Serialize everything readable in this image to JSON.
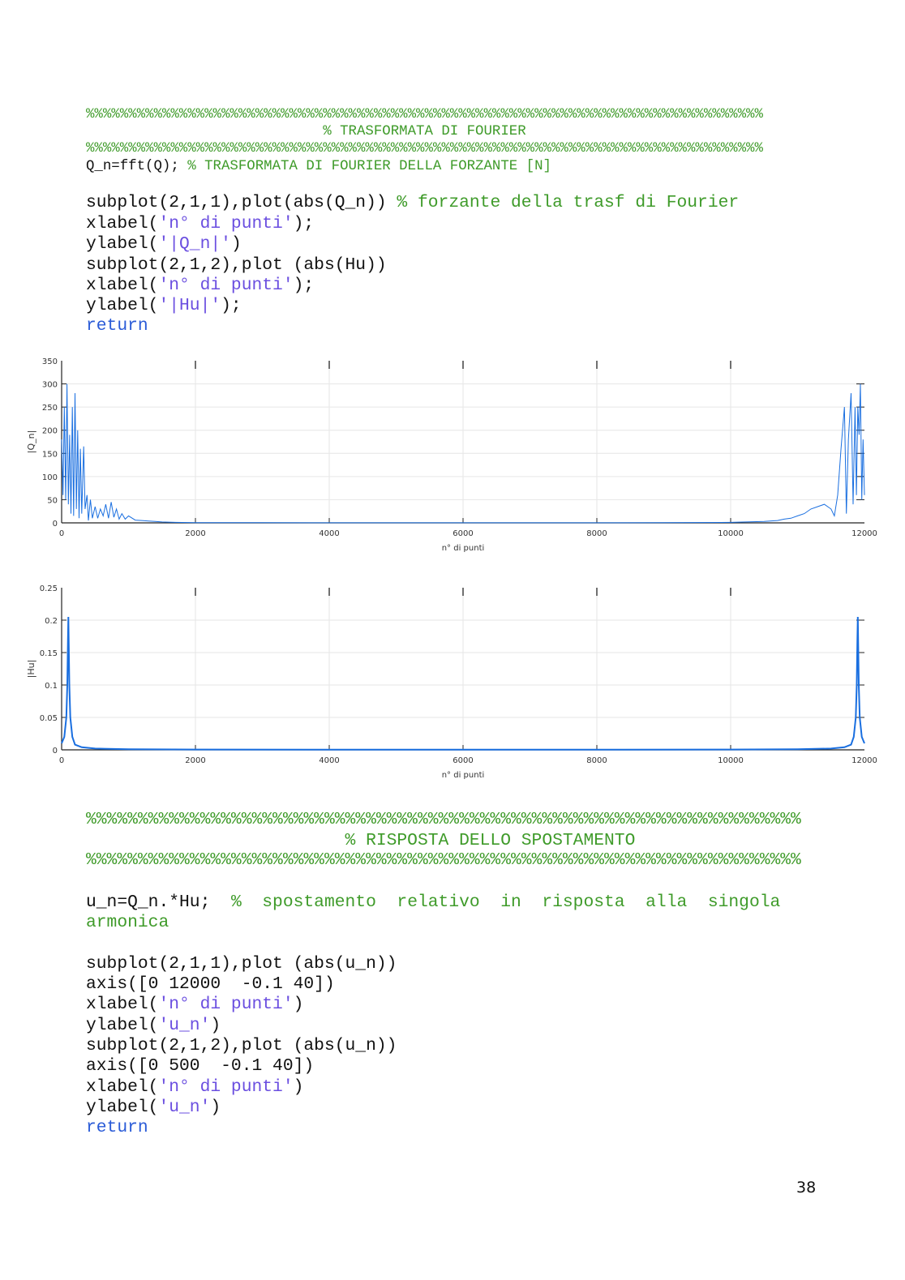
{
  "code_top": [
    {
      "size": "sm",
      "segments": [
        {
          "t": "%%%%%%%%%%%%%%%%%%%%%%%%%%%%%%%%%%%%%%%%%%%%%%%%%%%%%%%%%%%%%%%%%%%%%%%%%%%%%%%%",
          "c": "c"
        }
      ]
    },
    {
      "size": "sm",
      "segments": [
        {
          "t": "                            % TRASFORMATA DI FOURIER",
          "c": "c"
        }
      ]
    },
    {
      "size": "sm",
      "segments": [
        {
          "t": "%%%%%%%%%%%%%%%%%%%%%%%%%%%%%%%%%%%%%%%%%%%%%%%%%%%%%%%%%%%%%%%%%%%%%%%%%%%%%%%%",
          "c": "c"
        }
      ]
    },
    {
      "size": "sm",
      "segments": [
        {
          "t": "Q_n=fft(Q); ",
          "c": ""
        },
        {
          "t": "% TRASFORMATA DI FOURIER DELLA FORZANTE [N]",
          "c": "c"
        }
      ]
    },
    {
      "size": "lg",
      "segments": [
        {
          "t": "subplot(2,1,1),plot(abs(Q_n)) ",
          "c": ""
        },
        {
          "t": "% forzante della trasf di Fourier",
          "c": "c"
        }
      ]
    },
    {
      "size": "lg",
      "segments": [
        {
          "t": "xlabel(",
          "c": ""
        },
        {
          "t": "'n° di punti'",
          "c": "s"
        },
        {
          "t": ");",
          "c": ""
        }
      ]
    },
    {
      "size": "lg",
      "segments": [
        {
          "t": "ylabel(",
          "c": ""
        },
        {
          "t": "'|Q_n|'",
          "c": "s"
        },
        {
          "t": ")",
          "c": ""
        }
      ]
    },
    {
      "size": "lg",
      "segments": [
        {
          "t": "subplot(2,1,2),plot (abs(Hu))",
          "c": ""
        }
      ]
    },
    {
      "size": "lg",
      "segments": [
        {
          "t": "xlabel(",
          "c": ""
        },
        {
          "t": "'n° di punti'",
          "c": "s"
        },
        {
          "t": ");",
          "c": ""
        }
      ]
    },
    {
      "size": "lg",
      "segments": [
        {
          "t": "ylabel(",
          "c": ""
        },
        {
          "t": "'|Hu|'",
          "c": "s"
        },
        {
          "t": ");",
          "c": ""
        }
      ]
    },
    {
      "size": "lg",
      "segments": [
        {
          "t": "return",
          "c": "k"
        }
      ]
    }
  ],
  "code_bottom": [
    {
      "size": "lg",
      "segments": [
        {
          "t": "%%%%%%%%%%%%%%%%%%%%%%%%%%%%%%%%%%%%%%%%%%%%%%%%%%%%%%%%%%%%%%%%%%%%%",
          "c": "c"
        }
      ]
    },
    {
      "size": "lg",
      "segments": [
        {
          "t": "                         % RISPOSTA DELLO SPOSTAMENTO",
          "c": "c"
        }
      ]
    },
    {
      "size": "lg",
      "segments": [
        {
          "t": "%%%%%%%%%%%%%%%%%%%%%%%%%%%%%%%%%%%%%%%%%%%%%%%%%%%%%%%%%%%%%%%%%%%%%",
          "c": "c"
        }
      ]
    },
    {
      "size": "lg",
      "segments": [
        {
          "t": "u_n=Q_n.*Hu;  ",
          "c": ""
        },
        {
          "t": "%  spostamento  relativo  in  risposta  alla  singola",
          "c": "c"
        }
      ]
    },
    {
      "size": "lg",
      "segments": [
        {
          "t": "armonica",
          "c": "c"
        }
      ]
    },
    {
      "size": "lg",
      "segments": [
        {
          "t": "subplot(2,1,1),plot (abs(u_n))",
          "c": ""
        }
      ]
    },
    {
      "size": "lg",
      "segments": [
        {
          "t": "axis([0 12000  -0.1 40])",
          "c": ""
        }
      ]
    },
    {
      "size": "lg",
      "segments": [
        {
          "t": "xlabel(",
          "c": ""
        },
        {
          "t": "'n° di punti'",
          "c": "s"
        },
        {
          "t": ")",
          "c": ""
        }
      ]
    },
    {
      "size": "lg",
      "segments": [
        {
          "t": "ylabel(",
          "c": ""
        },
        {
          "t": "'u_n'",
          "c": "s"
        },
        {
          "t": ")",
          "c": ""
        }
      ]
    },
    {
      "size": "lg",
      "segments": [
        {
          "t": "subplot(2,1,2),plot (abs(u_n))",
          "c": ""
        }
      ]
    },
    {
      "size": "lg",
      "segments": [
        {
          "t": "axis([0 500  -0.1 40])",
          "c": ""
        }
      ]
    },
    {
      "size": "lg",
      "segments": [
        {
          "t": "xlabel(",
          "c": ""
        },
        {
          "t": "'n° di punti'",
          "c": "s"
        },
        {
          "t": ")",
          "c": ""
        }
      ]
    },
    {
      "size": "lg",
      "segments": [
        {
          "t": "ylabel(",
          "c": ""
        },
        {
          "t": "'u_n'",
          "c": "s"
        },
        {
          "t": ")",
          "c": ""
        }
      ]
    },
    {
      "size": "lg",
      "segments": [
        {
          "t": "return",
          "c": "k"
        }
      ]
    }
  ],
  "page_number": "38",
  "chart_data": [
    {
      "type": "line",
      "xlabel": "n° di punti",
      "ylabel": "|Q_n|",
      "xlim": [
        0,
        12000
      ],
      "ylim": [
        0,
        350
      ],
      "xticks": [
        "0",
        "2000",
        "4000",
        "6000",
        "8000",
        "10000",
        "12000"
      ],
      "yticks": [
        "0",
        "50",
        "100",
        "150",
        "200",
        "250",
        "300",
        "350"
      ],
      "grid": true,
      "color": "#1a6fe0",
      "x": [
        0,
        20,
        40,
        60,
        80,
        100,
        120,
        140,
        160,
        180,
        200,
        220,
        240,
        260,
        280,
        300,
        330,
        350,
        380,
        400,
        430,
        460,
        500,
        540,
        580,
        620,
        660,
        700,
        740,
        780,
        820,
        860,
        900,
        950,
        1000,
        1100,
        1200,
        1300,
        1400,
        1500,
        1700,
        2000,
        3000,
        6000,
        9000,
        10000,
        10500,
        10700,
        10800,
        10900,
        11000,
        11100,
        11200,
        11300,
        11400,
        11500,
        11550,
        11600,
        11650,
        11700,
        11730,
        11760,
        11800,
        11830,
        11860,
        11880,
        11900,
        11920,
        11940,
        11960,
        11980,
        12000
      ],
      "y": [
        180,
        60,
        250,
        50,
        300,
        40,
        190,
        20,
        250,
        15,
        280,
        30,
        200,
        10,
        160,
        20,
        165,
        30,
        60,
        5,
        50,
        10,
        35,
        10,
        30,
        15,
        40,
        10,
        45,
        12,
        30,
        8,
        20,
        8,
        15,
        6,
        5,
        4,
        3,
        2,
        1,
        0.5,
        0.3,
        0.2,
        0.3,
        1,
        3,
        5,
        8,
        10,
        15,
        20,
        30,
        35,
        40,
        30,
        15,
        60,
        160,
        250,
        20,
        180,
        280,
        40,
        250,
        60,
        250,
        190,
        300,
        50,
        180,
        60
      ]
    },
    {
      "type": "line",
      "xlabel": "n° di punti",
      "ylabel": "|Hu|",
      "xlim": [
        0,
        12000
      ],
      "ylim": [
        0,
        0.25
      ],
      "xticks": [
        "0",
        "2000",
        "4000",
        "6000",
        "8000",
        "10000",
        "12000"
      ],
      "yticks": [
        "0",
        "0.05",
        "0.1",
        "0.15",
        "0.2",
        "0.25"
      ],
      "grid": true,
      "color": "#1a6fe0",
      "x": [
        0,
        40,
        70,
        85,
        95,
        100,
        105,
        115,
        130,
        160,
        200,
        300,
        500,
        1000,
        2000,
        4000,
        6000,
        8000,
        10000,
        11000,
        11500,
        11700,
        11800,
        11840,
        11870,
        11885,
        11895,
        11900,
        11905,
        11915,
        11930,
        11960,
        12000
      ],
      "y": [
        0.01,
        0.02,
        0.05,
        0.1,
        0.17,
        0.205,
        0.17,
        0.1,
        0.05,
        0.02,
        0.008,
        0.004,
        0.002,
        0.001,
        0.0005,
        0.0003,
        0.0003,
        0.0003,
        0.0005,
        0.001,
        0.002,
        0.004,
        0.008,
        0.02,
        0.05,
        0.1,
        0.17,
        0.205,
        0.17,
        0.1,
        0.05,
        0.02,
        0.01
      ]
    }
  ]
}
